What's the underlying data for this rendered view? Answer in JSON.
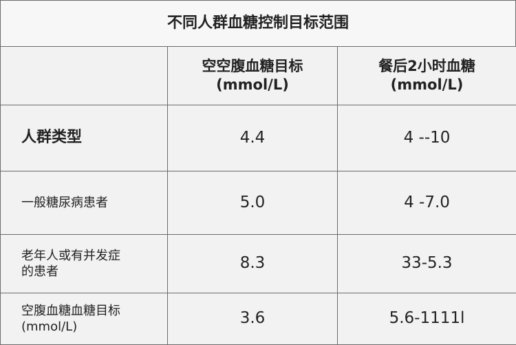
{
  "title": "不同人群血糖控制目标范围",
  "table": {
    "header": [
      "空空腹血糖目标\n(mmol/L)",
      "餐后2小时血糖\n(mmol/L)"
    ],
    "rows": [
      [
        "人群类型",
        "4.4",
        "4 --10"
      ],
      [
        "一般糖尿病患者",
        "5.0",
        "4 -7.0"
      ],
      [
        "老年人或有并发症\n的患者",
        "8.3",
        "33-5.3"
      ],
      [
        "空腹血糖血糖目标\n(mmol/L)",
        "3.6",
        "5.6-1111l"
      ]
    ]
  }
}
